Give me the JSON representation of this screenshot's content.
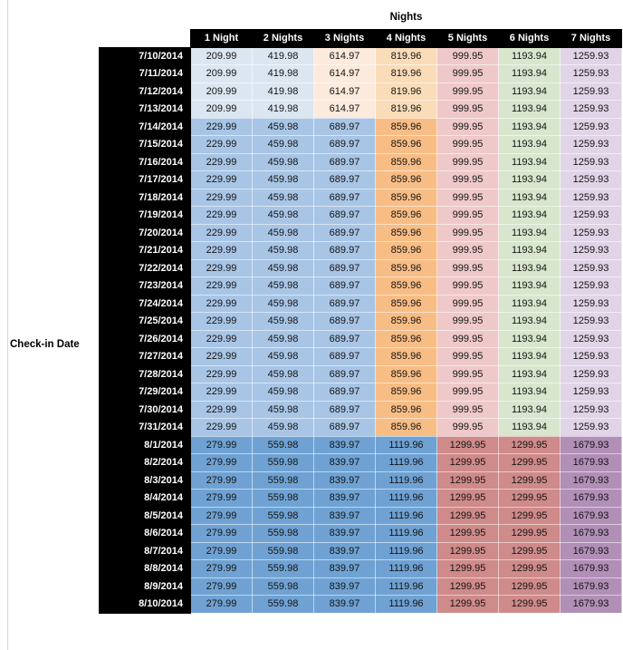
{
  "axis_labels": {
    "columns": "Nights",
    "rows": "Check-in Date"
  },
  "table": {
    "header_bg": "#000000",
    "header_text": "#ffffff",
    "columns": [
      "1 Night",
      "2 Nights",
      "3 Nights",
      "4 Nights",
      "5 Nights",
      "6 Nights",
      "7 Nights"
    ],
    "groups": [
      {
        "dates": [
          "7/10/2014",
          "7/11/2014",
          "7/12/2014",
          "7/13/2014"
        ],
        "values": [
          "209.99",
          "419.98",
          "614.97",
          "819.96",
          "999.95",
          "1193.94",
          "1259.93"
        ],
        "cell_colors": [
          "#dce6f1",
          "#dce6f1",
          "#fceadc",
          "#fadcb8",
          "#efc9c9",
          "#d7e6cd",
          "#e1d4e7"
        ]
      },
      {
        "dates": [
          "7/14/2014",
          "7/15/2014",
          "7/16/2014",
          "7/17/2014",
          "7/18/2014",
          "7/19/2014",
          "7/20/2014",
          "7/21/2014",
          "7/22/2014",
          "7/23/2014",
          "7/24/2014",
          "7/25/2014",
          "7/26/2014",
          "7/27/2014",
          "7/28/2014",
          "7/29/2014",
          "7/30/2014",
          "7/31/2014"
        ],
        "values": [
          "229.99",
          "459.98",
          "689.97",
          "859.96",
          "999.95",
          "1193.94",
          "1259.93"
        ],
        "cell_colors": [
          "#a8c5e6",
          "#a8c5e6",
          "#a8c5e6",
          "#f8bd85",
          "#efc9c9",
          "#d7e6cd",
          "#e1d4e7"
        ]
      },
      {
        "dates": [
          "8/1/2014",
          "8/2/2014",
          "8/3/2014",
          "8/4/2014",
          "8/5/2014",
          "8/6/2014",
          "8/7/2014",
          "8/8/2014",
          "8/9/2014",
          "8/10/2014"
        ],
        "values": [
          "279.99",
          "559.98",
          "839.97",
          "1119.96",
          "1299.95",
          "1299.95",
          "1679.93"
        ],
        "cell_colors": [
          "#6fa2d3",
          "#6fa2d3",
          "#6fa2d3",
          "#6fa2d3",
          "#cf8a8a",
          "#cf8a8a",
          "#b18fb7"
        ]
      }
    ]
  }
}
